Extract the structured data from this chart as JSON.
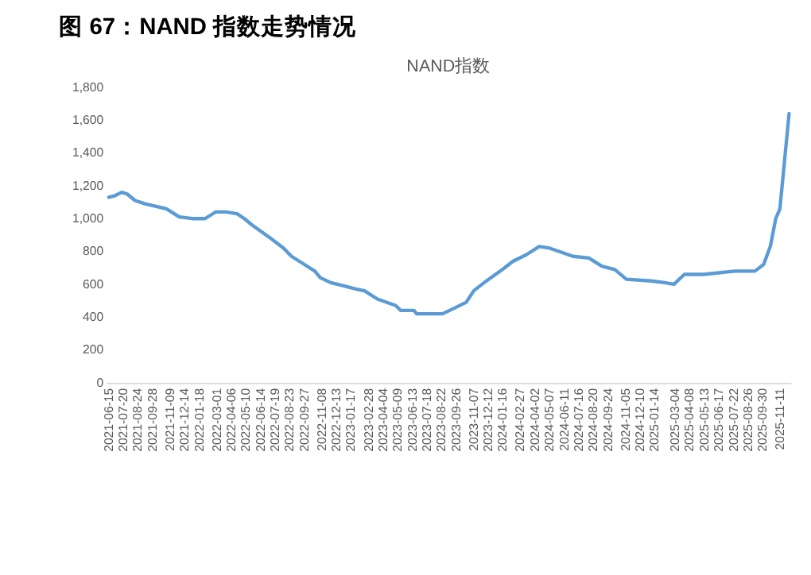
{
  "chart_data": {
    "type": "line",
    "title": "NAND指数",
    "annotations": [
      "图 67：NAND 指数走势情况"
    ],
    "x": [
      "2021-06-15",
      "2021-06-30",
      "2021-07-16",
      "2021-07-29",
      "2021-08-17",
      "2021-09-10",
      "2021-10-31",
      "2021-12-01",
      "2022-01-01",
      "2022-02-01",
      "2022-02-26",
      "2022-03-23",
      "2022-04-18",
      "2022-05-06",
      "2022-05-25",
      "2022-07-08",
      "2022-08-08",
      "2022-08-27",
      "2022-09-21",
      "2022-10-22",
      "2022-11-04",
      "2022-11-29",
      "2022-12-30",
      "2023-01-30",
      "2023-02-18",
      "2023-03-21",
      "2023-05-04",
      "2023-05-16",
      "2023-06-17",
      "2023-06-23",
      "2023-08-24",
      "2023-09-18",
      "2023-10-20",
      "2023-11-07",
      "2023-12-02",
      "2024-01-15",
      "2024-02-09",
      "2024-03-12",
      "2024-04-12",
      "2024-05-07",
      "2024-07-02",
      "2024-08-09",
      "2024-09-09",
      "2024-10-10",
      "2024-11-07",
      "2025-01-06",
      "2025-02-06",
      "2025-03-01",
      "2025-03-26",
      "2025-05-11",
      "2025-07-25",
      "2025-09-11",
      "2025-10-02",
      "2025-10-18",
      "2025-10-31",
      "2025-11-10",
      "2025-12-02"
    ],
    "series": [
      {
        "color": "#5b9bd5",
        "values": [
          1130,
          1140,
          1160,
          1150,
          1110,
          1090,
          1060,
          1010,
          1000,
          1000,
          1040,
          1040,
          1030,
          1000,
          960,
          880,
          820,
          770,
          730,
          680,
          640,
          610,
          590,
          570,
          560,
          510,
          470,
          440,
          440,
          420,
          420,
          450,
          490,
          560,
          610,
          690,
          740,
          780,
          830,
          820,
          770,
          760,
          710,
          690,
          630,
          620,
          610,
          600,
          660,
          660,
          680,
          680,
          720,
          830,
          1000,
          1060,
          1640
        ]
      }
    ],
    "xlim": [
      "2021-06-08",
      "2025-12-06"
    ],
    "xticks": [
      "2021-06-15",
      "2021-07-20",
      "2021-08-24",
      "2021-09-28",
      "2021-11-09",
      "2021-12-14",
      "2022-01-18",
      "2022-03-01",
      "2022-04-06",
      "2022-05-10",
      "2022-06-14",
      "2022-07-19",
      "2022-08-23",
      "2022-09-27",
      "2022-11-08",
      "2022-12-13",
      "2023-01-17",
      "2023-02-28",
      "2023-04-04",
      "2023-05-09",
      "2023-06-13",
      "2023-07-18",
      "2023-08-22",
      "2023-09-26",
      "2023-11-07",
      "2023-12-12",
      "2024-01-16",
      "2024-02-27",
      "2024-04-02",
      "2024-05-07",
      "2024-06-11",
      "2024-07-16",
      "2024-08-20",
      "2024-09-24",
      "2024-11-05",
      "2024-12-10",
      "2025-01-14",
      "2025-03-04",
      "2025-04-08",
      "2025-05-13",
      "2025-06-17",
      "2025-07-22",
      "2025-08-26",
      "2025-09-30",
      "2025-11-11"
    ],
    "ylim": [
      0,
      1800
    ],
    "yticks": [
      0,
      200,
      400,
      600,
      800,
      {
        "value": 1000,
        "label": "1,000"
      },
      {
        "value": 1200,
        "label": "1,200"
      },
      {
        "value": 1400,
        "label": "1,400"
      },
      {
        "value": 1600,
        "label": "1,600"
      },
      {
        "value": 1800,
        "label": "1,800"
      }
    ],
    "grid": false,
    "legend": false,
    "line_style": "solid",
    "marker": "none"
  }
}
